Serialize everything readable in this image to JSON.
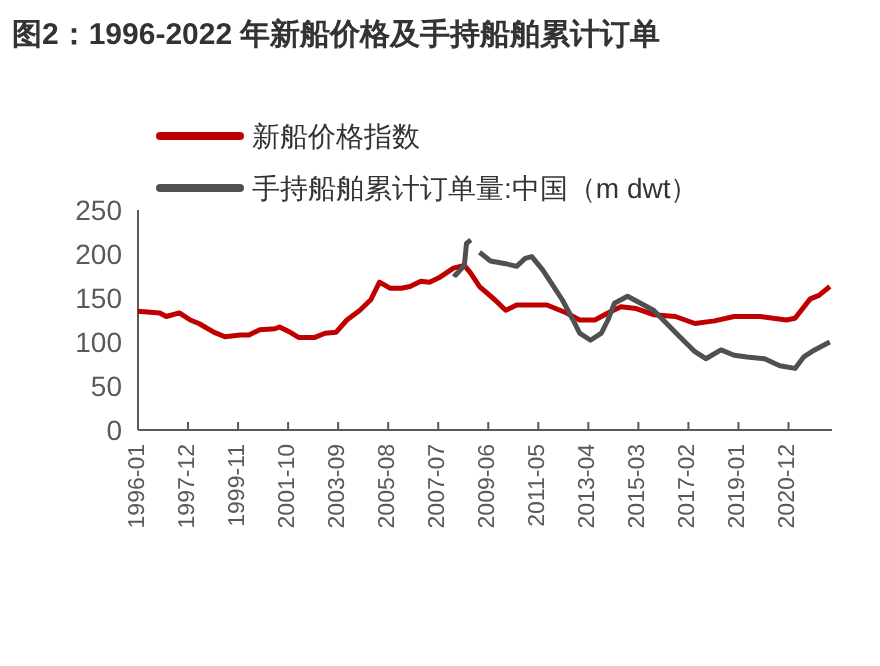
{
  "chart_data": {
    "type": "line",
    "title": "图2：1996-2022 年新船价格及手持船舶累计订单",
    "xlim": [
      "1996-01",
      "2022-08"
    ],
    "xticks": [
      "1996-01",
      "1997-12",
      "1999-11",
      "2001-10",
      "2003-09",
      "2005-08",
      "2007-07",
      "2009-06",
      "2011-05",
      "2013-04",
      "2015-03",
      "2017-02",
      "2019-01",
      "2020-12"
    ],
    "ylim": [
      0,
      250
    ],
    "yticks": [
      0,
      50,
      100,
      150,
      200,
      250
    ],
    "grid": false,
    "legend": "top left",
    "marker": "none",
    "line_style": "solid",
    "series": [
      {
        "name": "新船价格指数",
        "color": "#c00000",
        "x": [
          "1996-01",
          "1996-11",
          "1997-02",
          "1997-08",
          "1998-01",
          "1998-05",
          "1998-12",
          "1999-05",
          "1999-12",
          "2000-04",
          "2000-09",
          "2001-04",
          "2001-06",
          "2001-11",
          "2002-03",
          "2002-10",
          "2003-03",
          "2003-08",
          "2004-01",
          "2004-07",
          "2004-12",
          "2005-04",
          "2005-09",
          "2006-02",
          "2006-06",
          "2006-11",
          "2007-03",
          "2007-08",
          "2008-02",
          "2008-07",
          "2008-10",
          "2009-02",
          "2009-09",
          "2010-02",
          "2010-07",
          "2011-09",
          "2012-06",
          "2012-12",
          "2013-07",
          "2014-01",
          "2014-07",
          "2015-02",
          "2015-10",
          "2016-08",
          "2017-05",
          "2018-02",
          "2018-11",
          "2019-11",
          "2020-11",
          "2021-03",
          "2021-10",
          "2022-02",
          "2022-07"
        ],
        "values": [
          135,
          133,
          129,
          133,
          125,
          121,
          111,
          106,
          108,
          108,
          114,
          115,
          117,
          111,
          105,
          105,
          110,
          111,
          125,
          136,
          148,
          168,
          161,
          161,
          163,
          169,
          168,
          174,
          184,
          187,
          178,
          163,
          148,
          136,
          142,
          142,
          133,
          125,
          125,
          133,
          140,
          138,
          131,
          129,
          121,
          124,
          129,
          129,
          125,
          127,
          149,
          153,
          163
        ]
      },
      {
        "name": "手持船舶累计订单量:中国（m dwt）",
        "color": "#505050",
        "x": [
          "2008-02",
          "2008-03",
          "2008-07",
          "2008-08",
          "2008-10",
          "2008-12",
          "2009-02",
          "2009-07",
          "2010-02",
          "2010-07",
          "2010-11",
          "2011-02",
          "2011-07",
          "2011-11",
          "2012-04",
          "2012-09",
          "2012-12",
          "2013-05",
          "2013-10",
          "2014-01",
          "2014-04",
          "2014-10",
          "2015-04",
          "2015-10",
          "2016-04",
          "2016-10",
          "2017-05",
          "2017-10",
          "2018-05",
          "2018-11",
          "2019-05",
          "2020-01",
          "2020-08",
          "2021-03",
          "2021-07",
          "2021-12",
          "2022-07"
        ],
        "values": [
          178,
          176,
          187,
          212,
          216,
          null,
          202,
          192,
          189,
          186,
          195,
          197,
          182,
          167,
          148,
          125,
          110,
          102,
          110,
          125,
          144,
          152,
          144,
          136,
          121,
          106,
          89,
          81,
          91,
          85,
          83,
          81,
          73,
          70,
          83,
          91,
          100
        ]
      }
    ]
  }
}
